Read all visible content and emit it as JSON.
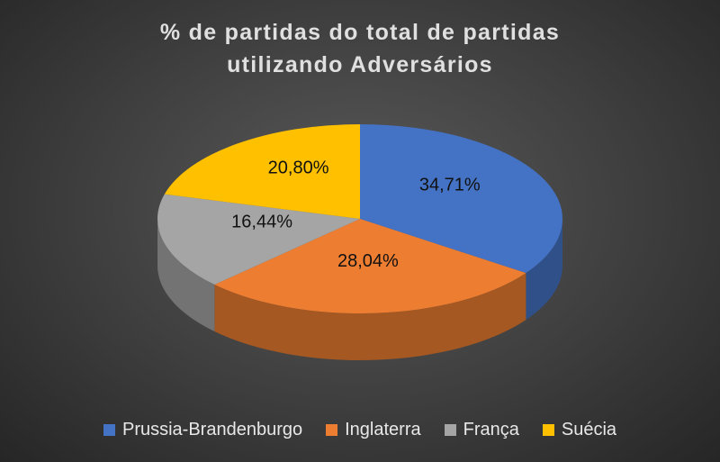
{
  "chart_data": {
    "type": "pie",
    "title": "% de partidas do total de partidas utilizando Adversários",
    "categories": [
      "Prussia-Brandenburgo",
      "Inglaterra",
      "França",
      "Suécia"
    ],
    "values": [
      34.71,
      28.04,
      16.44,
      20.8
    ],
    "value_labels": [
      "34,71%",
      "28,04%",
      "16,44%",
      "20,80%"
    ],
    "colors": [
      "#4472c4",
      "#ed7d31",
      "#a5a5a5",
      "#ffc000"
    ],
    "legend": "bottom"
  }
}
